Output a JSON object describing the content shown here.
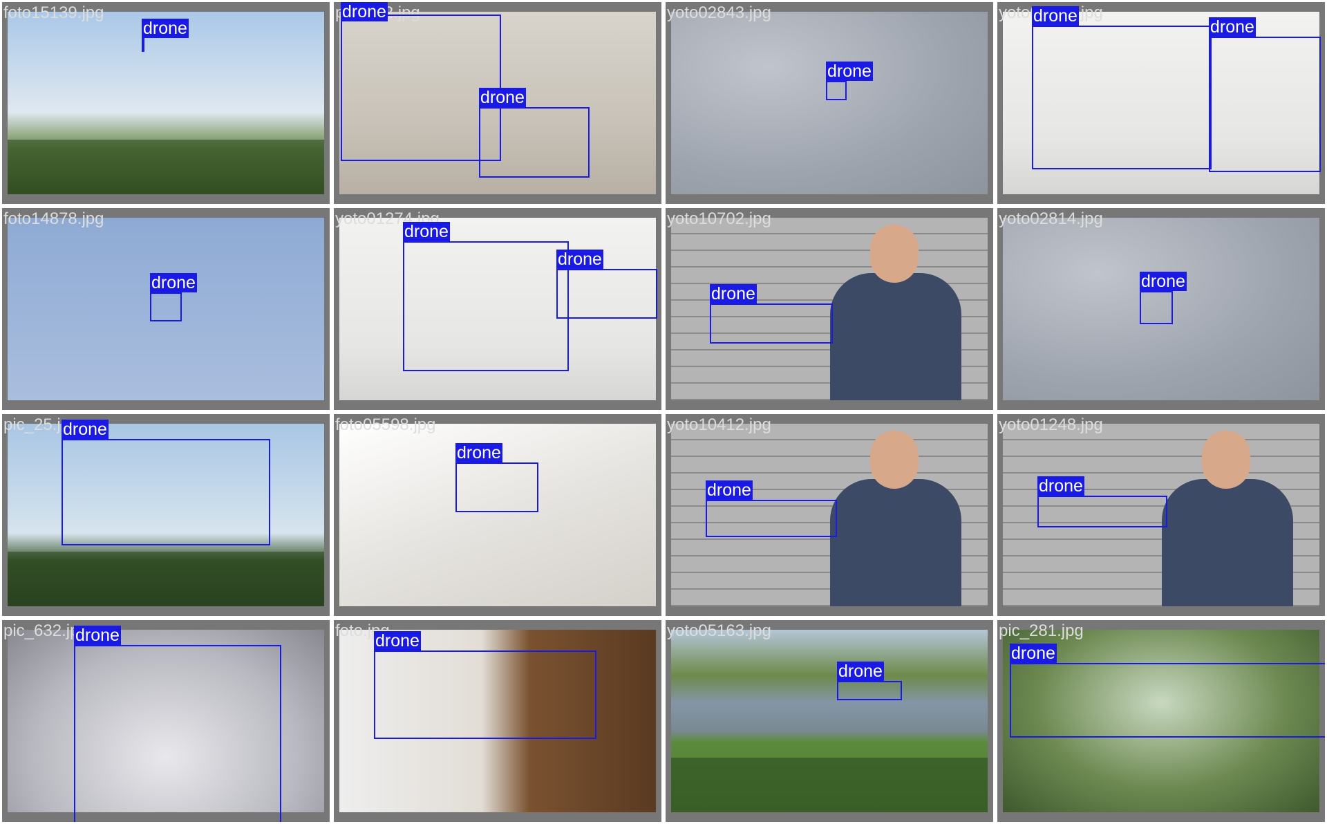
{
  "label_color": "#1a1ae6",
  "tiles": [
    {
      "filename": "foto15139.jpg",
      "scene": "palms",
      "boxes": [
        {
          "label": "drone"
        }
      ]
    },
    {
      "filename": "pic_612.jpg",
      "scene": "hand-drones",
      "boxes": [
        {
          "label": "drone"
        },
        {
          "label": "drone"
        }
      ]
    },
    {
      "filename": "yoto02843.jpg",
      "scene": "cloudy",
      "boxes": [
        {
          "label": "drone"
        }
      ]
    },
    {
      "filename": "yoto02844.jpg",
      "scene": "studio-white",
      "boxes": [
        {
          "label": "drone"
        },
        {
          "label": "drone"
        }
      ]
    },
    {
      "filename": "foto14878.jpg",
      "scene": "blue-sky",
      "boxes": [
        {
          "label": "drone"
        }
      ]
    },
    {
      "filename": "yoto01274.jpg",
      "scene": "studio-white",
      "boxes": [
        {
          "label": "drone"
        },
        {
          "label": "drone"
        }
      ]
    },
    {
      "filename": "yoto10702.jpg",
      "scene": "brick-person",
      "boxes": [
        {
          "label": "drone"
        }
      ]
    },
    {
      "filename": "yoto02814.jpg",
      "scene": "cloudy",
      "boxes": [
        {
          "label": "drone"
        }
      ]
    },
    {
      "filename": "pic_25.jpg",
      "scene": "octocopter",
      "boxes": [
        {
          "label": "drone"
        }
      ]
    },
    {
      "filename": "foto05598.jpg",
      "scene": "floor",
      "boxes": [
        {
          "label": "drone"
        }
      ]
    },
    {
      "filename": "yoto10412.jpg",
      "scene": "brick-person",
      "boxes": [
        {
          "label": "drone"
        }
      ]
    },
    {
      "filename": "yoto01248.jpg",
      "scene": "brick-person",
      "boxes": [
        {
          "label": "drone"
        }
      ]
    },
    {
      "filename": "pic_632.jpg",
      "scene": "karma",
      "boxes": [
        {
          "label": "drone"
        }
      ]
    },
    {
      "filename": "foto.jpg",
      "scene": "indoor-drone",
      "boxes": [
        {
          "label": "drone"
        }
      ]
    },
    {
      "filename": "yoto05163.jpg",
      "scene": "river",
      "boxes": [
        {
          "label": "drone"
        }
      ]
    },
    {
      "filename": "pic_281.jpg",
      "scene": "green-blur",
      "boxes": [
        {
          "label": "drone"
        }
      ]
    }
  ]
}
